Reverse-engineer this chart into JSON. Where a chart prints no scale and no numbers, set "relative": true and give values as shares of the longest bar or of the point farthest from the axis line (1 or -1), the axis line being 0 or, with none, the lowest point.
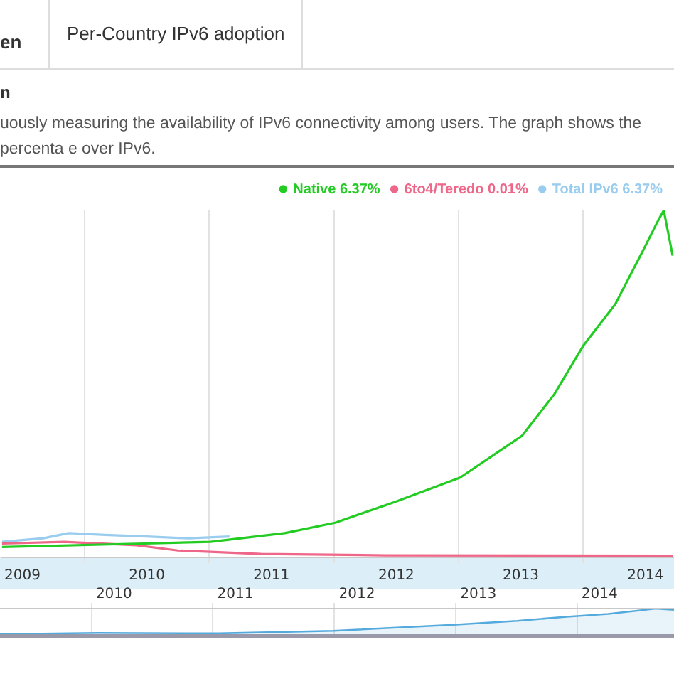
{
  "chart_data": [
    {
      "type": "line",
      "subtitle": "uously measuring the availability of IPv6 connectivity among users. The graph shows the percenta e over IPv6.",
      "annotations": [
        "en",
        "Per-Country IPv6 adoption",
        "n"
      ],
      "relative": true,
      "legend": "top right",
      "grid": "x",
      "marker": "none",
      "line_style": "solid",
      "xlim": [
        "2009-05-03",
        "2014-09-24"
      ],
      "xticks": [
        {
          "value": "2009-07-02",
          "label": "2009"
        },
        {
          "value": "2010-01-01",
          "label": null
        },
        {
          "value": "2010-07-02",
          "label": "2010"
        },
        {
          "value": "2011-01-01",
          "label": null
        },
        {
          "value": "2011-07-02",
          "label": "2011"
        },
        {
          "value": "2012-01-01",
          "label": null
        },
        {
          "value": "2012-07-02",
          "label": "2012"
        },
        {
          "value": "2013-01-01",
          "label": null
        },
        {
          "value": "2013-07-02",
          "label": "2013"
        },
        {
          "value": "2014-01-01",
          "label": null
        },
        {
          "value": "2014-07-02",
          "label": "2014"
        }
      ],
      "series": [
        {
          "name": "Native 6.37%",
          "color": "#22cc22",
          "x": [
            "2009-05-03",
            "2010-06-25",
            "2011-01-05",
            "2011-08-10",
            "2012-01-05",
            "2012-06-28",
            "2013-01-05",
            "2013-07-05",
            "2013-10-08",
            "2014-01-01",
            "2014-04-05",
            "2014-06-28",
            "2014-08-08",
            "2014-08-25",
            "2014-09-20"
          ],
          "values": [
            0.03,
            0.04,
            0.045,
            0.07,
            0.1,
            0.16,
            0.23,
            0.35,
            0.47,
            0.61,
            0.73,
            0.89,
            0.97,
            1,
            0.87
          ]
        },
        {
          "name": "6to4/Teredo 0.01%",
          "color": "#ee6688",
          "x": [
            "2009-05-03",
            "2009-11-01",
            "2010-06-01",
            "2010-10-01",
            "2011-06-01",
            "2012-06-01",
            "2014-09-20"
          ],
          "values": [
            0.04,
            0.045,
            0.035,
            0.02,
            0.01,
            0.006,
            0.005
          ]
        },
        {
          "name": "Total IPv6 6.37%",
          "color": "#99ccee",
          "x": [
            "2009-05-03",
            "2009-09-01",
            "2009-11-15",
            "2010-03-01",
            "2010-07-01",
            "2010-11-01",
            "2011-03-01"
          ],
          "values": [
            0.045,
            0.055,
            0.07,
            0.065,
            0.06,
            0.055,
            0.06
          ]
        }
      ]
    },
    {
      "type": "area",
      "relative": true,
      "legend": false,
      "grid": "x",
      "marker": "none",
      "xlim": [
        "2009-04-01",
        "2014-10-20"
      ],
      "xticks": [
        {
          "value": "2010-01-01",
          "label": null
        },
        {
          "value": "2010-03-10",
          "label": "2010"
        },
        {
          "value": "2011-01-01",
          "label": null
        },
        {
          "value": "2011-03-10",
          "label": "2011"
        },
        {
          "value": "2012-01-01",
          "label": null
        },
        {
          "value": "2012-03-10",
          "label": "2012"
        },
        {
          "value": "2013-01-01",
          "label": null
        },
        {
          "value": "2013-03-10",
          "label": "2013"
        },
        {
          "value": "2014-01-01",
          "label": null
        },
        {
          "value": "2014-03-10",
          "label": "2014"
        }
      ],
      "series": [
        {
          "color": "#55aadd",
          "x": [
            "2009-04-01",
            "2010-01-20",
            "2011-01-20",
            "2011-12-30",
            "2012-12-25",
            "2013-07-05",
            "2013-12-01",
            "2014-04-05",
            "2014-07-25",
            "2014-08-25",
            "2014-10-20"
          ],
          "values": [
            0,
            0.05,
            0.03,
            0.13,
            0.37,
            0.52,
            0.68,
            0.79,
            0.95,
            1,
            0.95
          ]
        }
      ]
    }
  ]
}
